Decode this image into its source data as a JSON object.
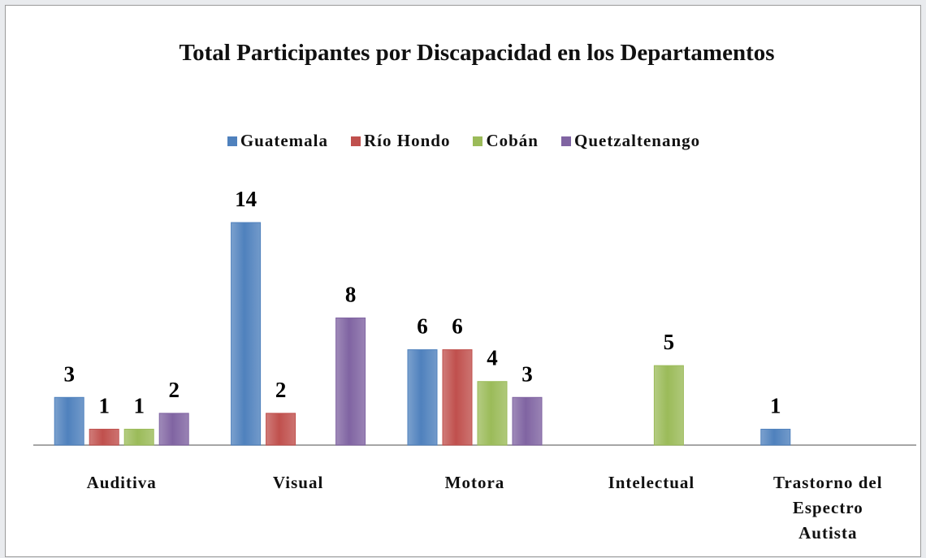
{
  "chart_data": {
    "type": "bar",
    "title": "Total Participantes por Discapacidad en los Departamentos",
    "categories": [
      "Auditiva",
      "Visual",
      "Motora",
      "Intelectual",
      "Trastorno del Espectro Autista"
    ],
    "series": [
      {
        "name": "Guatemala",
        "color": "#4f81bd",
        "values": [
          3,
          14,
          6,
          null,
          1
        ]
      },
      {
        "name": "Río Hondo",
        "color": "#c0504d",
        "values": [
          1,
          2,
          6,
          null,
          null
        ]
      },
      {
        "name": "Cobán",
        "color": "#9bbb59",
        "values": [
          1,
          null,
          4,
          5,
          null
        ]
      },
      {
        "name": "Quetzaltenango",
        "color": "#8064a2",
        "values": [
          2,
          8,
          3,
          null,
          null
        ]
      }
    ],
    "legend": "top"
  }
}
